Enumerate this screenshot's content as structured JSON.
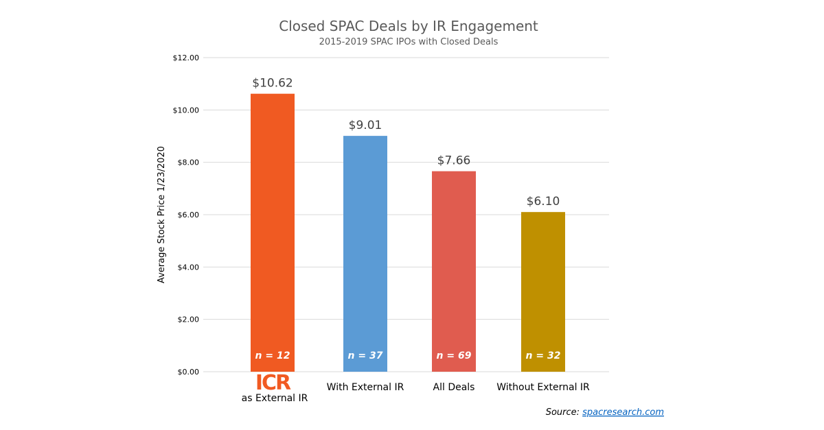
{
  "chart_data": {
    "type": "bar",
    "title": "Closed SPAC Deals by IR Engagement",
    "subtitle": "2015-2019 SPAC IPOs with Closed Deals",
    "ylabel": "Average Stock Price 1/23/2020",
    "xlabel": "",
    "ylim": [
      0,
      12
    ],
    "yticks": [
      "$0.00",
      "$2.00",
      "$4.00",
      "$6.00",
      "$8.00",
      "$10.00",
      "$12.00"
    ],
    "grid": true,
    "categories": [
      "as External IR",
      "With External IR",
      "All Deals",
      "Without External IR"
    ],
    "first_category_logo": "ICR",
    "values": [
      10.62,
      9.01,
      7.66,
      6.1
    ],
    "data_labels": [
      "$10.62",
      "$9.01",
      "$7.66",
      "$6.10"
    ],
    "n_labels": [
      "n = 12",
      "n = 37",
      "n = 69",
      "n = 32"
    ],
    "colors": [
      "#f05a22",
      "#5b9bd5",
      "#e05c4f",
      "#bf9000"
    ],
    "logo_color": "#f15a22"
  },
  "source": {
    "prefix": "Source: ",
    "link": "spacresearch.com"
  }
}
